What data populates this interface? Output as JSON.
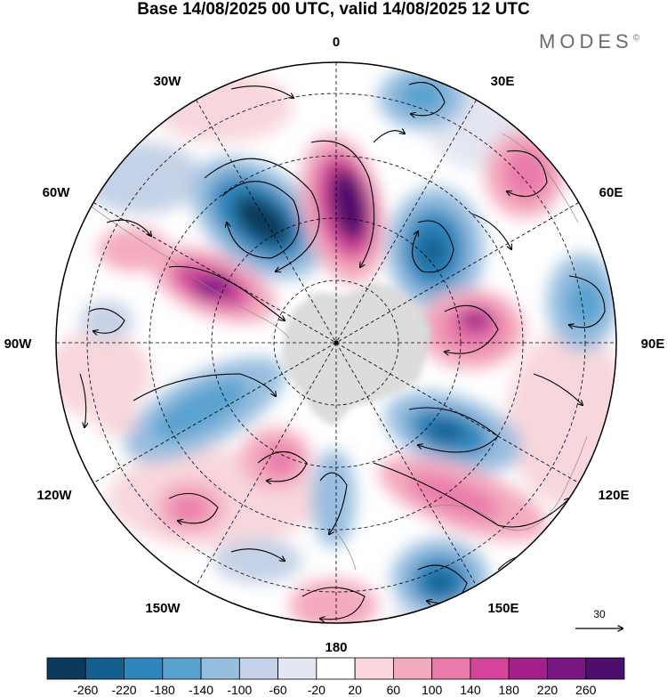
{
  "title": "Base 14/08/2025 00 UTC, valid 14/08/2025 12 UTC",
  "brand": "MODES",
  "brand_mark": "©",
  "longitude_labels": {
    "top": "0",
    "top_right": "30E",
    "top_left": "30W",
    "upper_right": "60E",
    "upper_left": "60W",
    "right": "90E",
    "left": "90W",
    "lower_right": "120E",
    "lower_left": "120W",
    "bottom_right": "150E",
    "bottom_left": "150W",
    "bottom": "180"
  },
  "reference_vector": "30",
  "colorbar": {
    "labels": [
      "-260",
      "-220",
      "-180",
      "-140",
      "-100",
      "-60",
      "-20",
      "20",
      "60",
      "100",
      "140",
      "180",
      "220",
      "260"
    ],
    "colors": [
      "#0d3a5c",
      "#155f8f",
      "#2f86bd",
      "#5aa3d0",
      "#98bedf",
      "#c5d1e6",
      "#e4e6f2",
      "#ffffff",
      "#f8d7dc",
      "#f4aabe",
      "#e97aaa",
      "#d3449a",
      "#a51f8b",
      "#781784",
      "#4d0f6b"
    ]
  },
  "anomaly_centers": [
    {
      "sign": "negative",
      "level": "strong",
      "sector": "45W-15W"
    },
    {
      "sign": "positive",
      "level": "strong",
      "sector": "15W-10E"
    },
    {
      "sign": "negative",
      "level": "moderate",
      "sector": "35E-55E"
    },
    {
      "sign": "positive",
      "level": "moderate",
      "sector": "60E-80E"
    },
    {
      "sign": "negative",
      "level": "weak",
      "sector": "20E"
    },
    {
      "sign": "positive",
      "level": "strong",
      "sector": "70W"
    },
    {
      "sign": "negative",
      "level": "moderate",
      "sector": "110W-130W"
    },
    {
      "sign": "positive",
      "level": "moderate",
      "sector": "100E-130E"
    },
    {
      "sign": "negative",
      "level": "strong",
      "sector": "150E-170E"
    },
    {
      "sign": "positive",
      "level": "weak",
      "sector": "180"
    },
    {
      "sign": "positive",
      "level": "weak",
      "sector": "140W"
    },
    {
      "sign": "negative",
      "level": "weak",
      "sector": "160W"
    }
  ],
  "colors": {
    "land": "#dcdcdc",
    "grid": "#000000",
    "text": "#000000",
    "brand": "#6a6a6a"
  }
}
